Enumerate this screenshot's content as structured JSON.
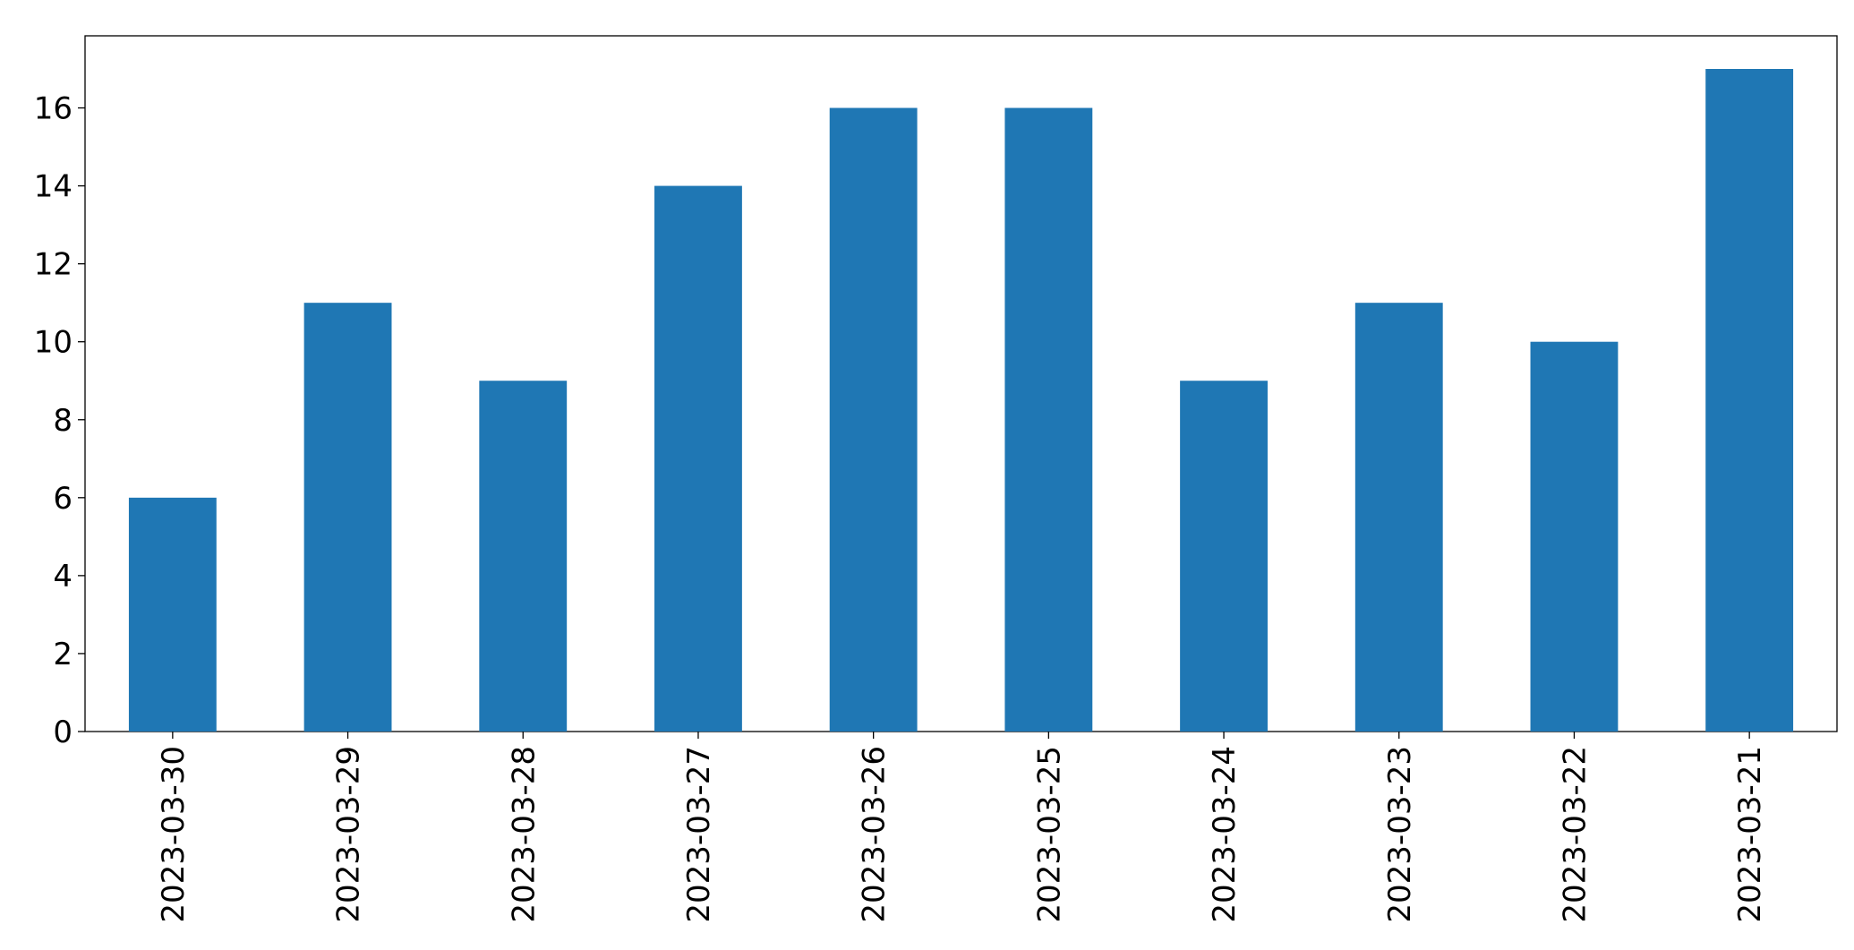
{
  "chart_data": {
    "type": "bar",
    "categories": [
      "2023-03-30",
      "2023-03-29",
      "2023-03-28",
      "2023-03-27",
      "2023-03-26",
      "2023-03-25",
      "2023-03-24",
      "2023-03-23",
      "2023-03-22",
      "2023-03-21"
    ],
    "values": [
      6,
      11,
      9,
      14,
      16,
      16,
      9,
      11,
      10,
      17
    ],
    "color": "#1f77b4",
    "ylim": [
      0,
      17.85
    ],
    "yticks": [
      0,
      2,
      4,
      6,
      8,
      10,
      12,
      14,
      16
    ],
    "grid": false
  }
}
